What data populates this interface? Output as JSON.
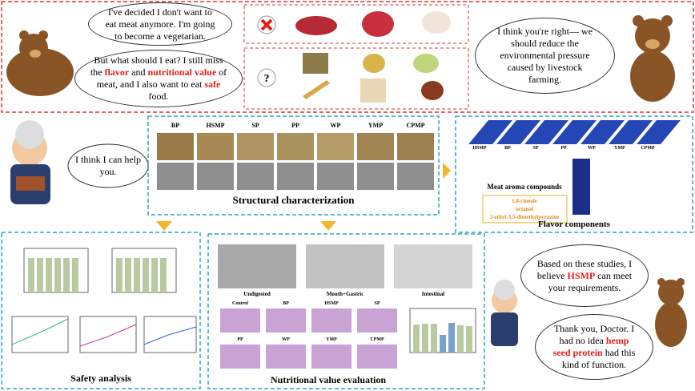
{
  "top": {
    "bubble_1": "I've decided I don't want to eat meat anymore. I'm going to become a vegetarian.",
    "bubble_2": [
      "But what should I eat? I still miss the ",
      "flavor",
      " and ",
      "nutritional value",
      " of meat, and I also want to eat ",
      "safe",
      " food."
    ],
    "bubble_3": "I think you're right— we should reduce the environmental pressure caused by livestock farming."
  },
  "doctor": {
    "bubble": "I think I can help you."
  },
  "structural": {
    "samples": [
      "BP",
      "HSMP",
      "SP",
      "PP",
      "WP",
      "YMP",
      "CPMP"
    ],
    "title": "Structural characterization"
  },
  "flavor": {
    "samples": [
      "HSMP",
      "BP",
      "SP",
      "PP",
      "WP",
      "YMP",
      "CPMP"
    ],
    "compounds_title": "Meat aroma compounds",
    "compounds": [
      "1,8-cineole",
      "octanal",
      "2-ethyl-3,5-dimethylpyrazine"
    ],
    "title": "Flavor components"
  },
  "safety": {
    "title": "Safety analysis"
  },
  "nutrition": {
    "gels": [
      "Undigested",
      "Mouth+Gastric",
      "Intestinal"
    ],
    "tissues": [
      "Control",
      "BP",
      "HSMP",
      "SP",
      "PP",
      "WP",
      "YMP",
      "CPMP"
    ],
    "title": "Nutritional value evaluation"
  },
  "conclusion": {
    "doctor": [
      "Based on these studies, I believe ",
      "HSMP",
      " can meet your requirements."
    ],
    "bear": [
      "Thank you, Doctor. I had no idea ",
      "hemp seed protein",
      " had this kind of function."
    ]
  }
}
